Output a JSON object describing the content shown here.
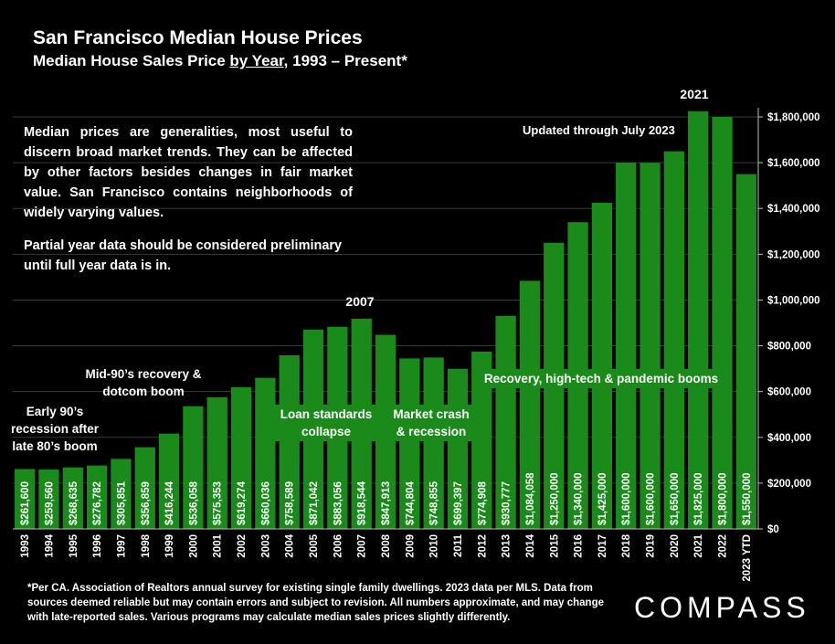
{
  "header": {
    "title": "San Francisco Median House Prices",
    "subtitle_pre": "Median House Sales Price ",
    "subtitle_under": "by Year",
    "subtitle_post": ", 1993 – Present*"
  },
  "notes": {
    "main": "Median prices are generalities, most useful to discern broad market trends. They can be affected by other factors besides changes in fair market value. San Francisco contains neighborhoods of widely varying values.",
    "partial": "Partial year data should be considered preliminary until full year data is in.",
    "updated": "Updated through July 2023"
  },
  "callouts": {
    "early90s": "Early 90’s recession after late 80’s boom",
    "mid90s": "Mid-90’s recovery & dotcom boom",
    "loan": "Loan standards collapse",
    "crash": "Market crash & recession",
    "recovery": "Recovery, high-tech & pandemic booms",
    "peak2007": "2007",
    "peak2021": "2021"
  },
  "footer": {
    "text": "*Per CA. Association of Realtors annual survey for existing single family dwellings. 2023 data per MLS. Data from sources deemed reliable but may contain errors and subject to revision. All numbers approximate, and may change with late-reported sales. Various programs may calculate median sales prices slightly differently.",
    "logo": "COMPASS"
  },
  "chart_data": {
    "type": "bar",
    "categories": [
      "1993",
      "1994",
      "1995",
      "1996",
      "1997",
      "1998",
      "1999",
      "2000",
      "2001",
      "2002",
      "2003",
      "2004",
      "2005",
      "2006",
      "2007",
      "2008",
      "2009",
      "2010",
      "2011",
      "2012",
      "2013",
      "2014",
      "2015",
      "2016",
      "2017",
      "2018",
      "2019",
      "2020",
      "2021",
      "2022",
      "2023 YTD"
    ],
    "values": [
      261600,
      259560,
      268635,
      276782,
      305851,
      356859,
      416244,
      536058,
      575353,
      619274,
      660036,
      758589,
      871042,
      883056,
      918544,
      847913,
      744804,
      748855,
      699397,
      774908,
      930777,
      1084058,
      1250000,
      1340000,
      1425000,
      1600000,
      1600000,
      1650000,
      1825000,
      1800000,
      1550000
    ],
    "labels": [
      "$261,600",
      "$259,560",
      "$268,635",
      "$276,782",
      "$305,851",
      "$356,859",
      "$416,244",
      "$536,058",
      "$575,353",
      "$619,274",
      "$660,036",
      "$758,589",
      "$871,042",
      "$883,056",
      "$918,544",
      "$847,913",
      "$744,804",
      "$748,855",
      "$699,397",
      "$774,908",
      "$930,777",
      "$1,084,058",
      "$1,250,000",
      "$1,340,000",
      "$1,425,000",
      "$1,600,000",
      "$1,600,000",
      "$1,650,000",
      "$1,825,000",
      "$1,800,000",
      "$1,550,000"
    ],
    "ylim": [
      0,
      1800000
    ],
    "yticks": [
      0,
      200000,
      400000,
      600000,
      800000,
      1000000,
      1200000,
      1400000,
      1600000,
      1800000
    ],
    "ytick_labels": [
      "$0",
      "$200,000",
      "$400,000",
      "$600,000",
      "$800,000",
      "$1,000,000",
      "$1,200,000",
      "$1,400,000",
      "$1,600,000",
      "$1,800,000"
    ],
    "axis_position": "right",
    "grid": true,
    "colors": {
      "bar": "#1a8a1a",
      "bar_highlight": "#2db82d",
      "grid": "#3a3a3a"
    }
  }
}
